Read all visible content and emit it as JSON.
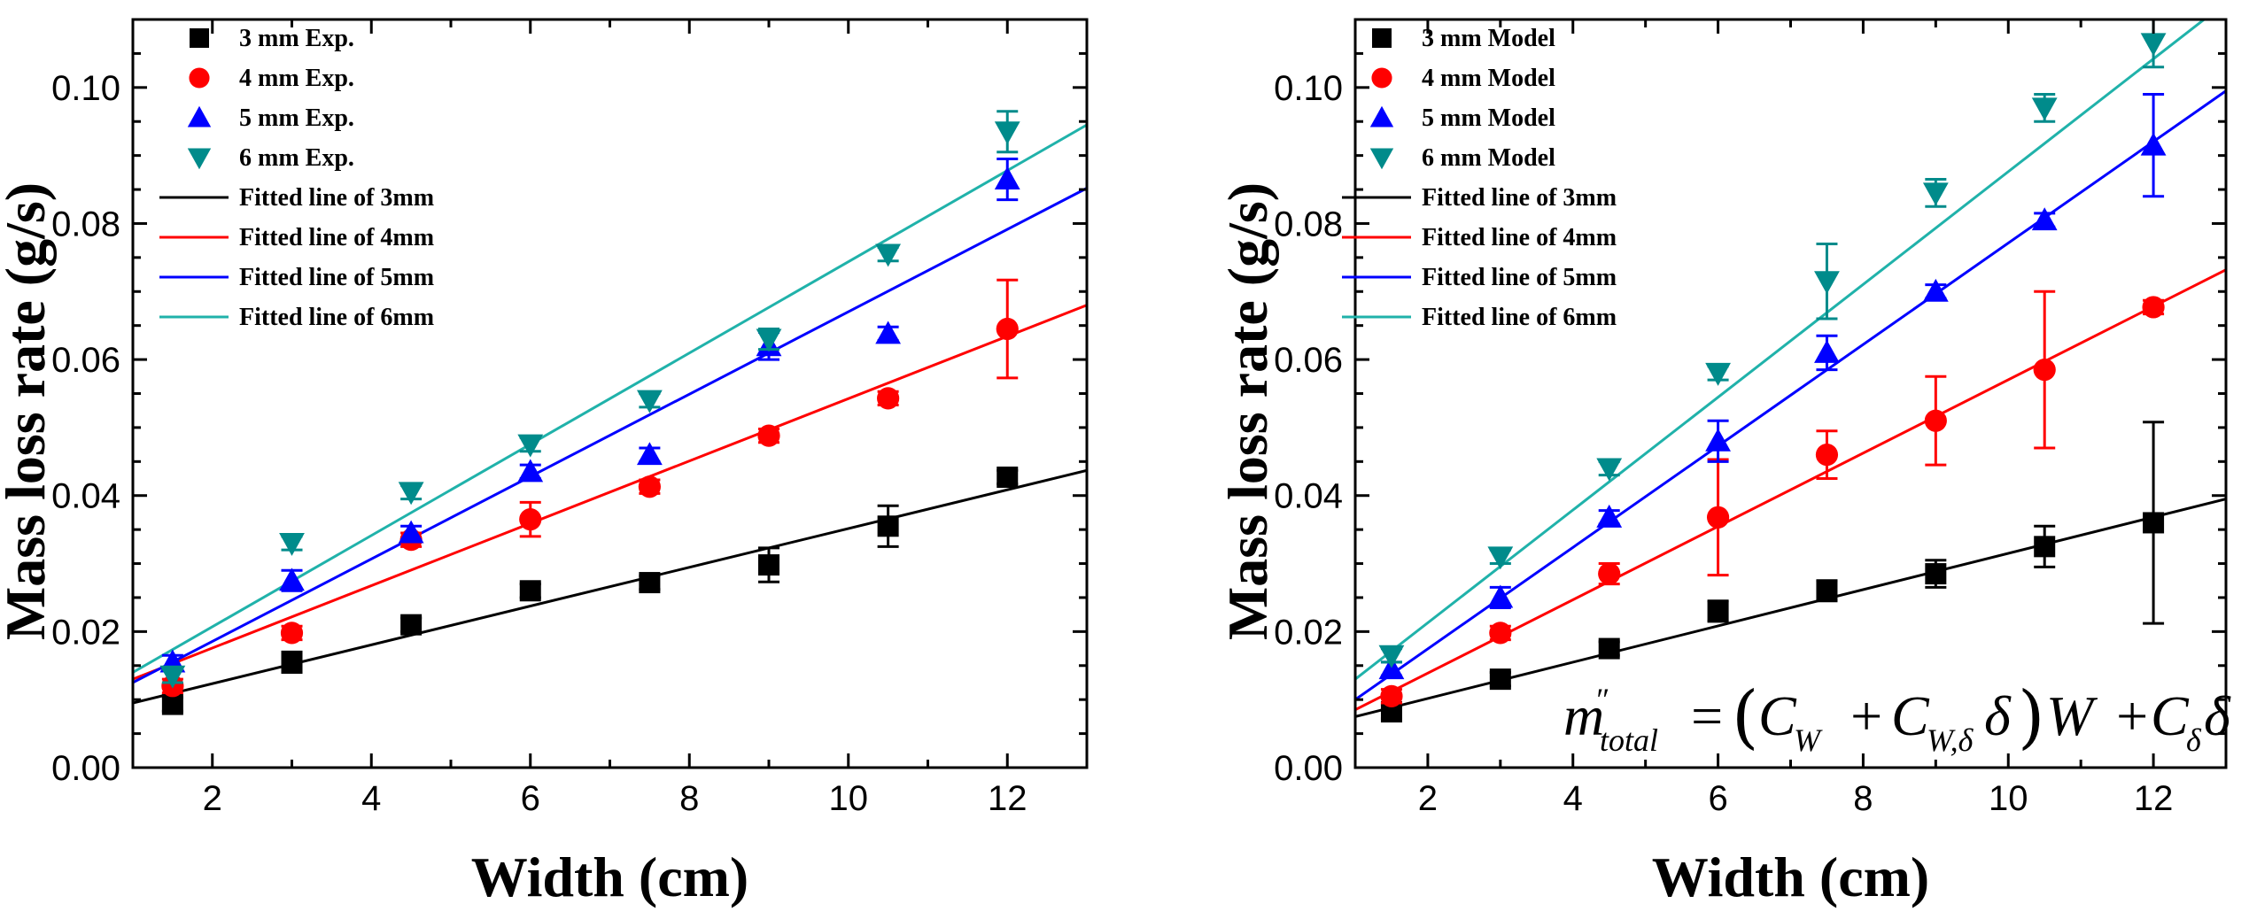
{
  "chart_data": [
    {
      "type": "scatter",
      "xlabel": "Width (cm)",
      "ylabel": "Mass loss rate (g/s)",
      "xlim": [
        1,
        13
      ],
      "ylim": [
        0,
        0.11
      ],
      "xticks": [
        2,
        4,
        6,
        8,
        10,
        12
      ],
      "yticks": [
        "0.00",
        "0.02",
        "0.04",
        "0.06",
        "0.08",
        "0.10"
      ],
      "grid": false,
      "legend": "top-left",
      "series": [
        {
          "name": "3 mm Exp.",
          "marker": "square",
          "color": "#000000",
          "x": [
            1.5,
            3,
            4.5,
            6,
            7.5,
            9,
            10.5,
            12
          ],
          "y": [
            0.0093,
            0.0155,
            0.021,
            0.026,
            0.0272,
            0.0298,
            0.0355,
            0.0427
          ],
          "err": [
            0.001,
            0.0015,
            0.001,
            0.001,
            0.001,
            0.0025,
            0.003,
            0.001
          ]
        },
        {
          "name": "4 mm Exp.",
          "marker": "circle",
          "color": "#ff0000",
          "x": [
            1.5,
            3,
            4.5,
            6,
            7.5,
            9,
            10.5,
            12
          ],
          "y": [
            0.012,
            0.0198,
            0.0335,
            0.0365,
            0.0413,
            0.0488,
            0.0543,
            0.0645
          ],
          "err": [
            0.001,
            0.001,
            0.001,
            0.0025,
            0.001,
            0.001,
            0.001,
            0.0072
          ]
        },
        {
          "name": "5 mm Exp.",
          "marker": "triangle-up",
          "color": "#0000ff",
          "x": [
            1.5,
            3,
            4.5,
            6,
            7.5,
            9,
            10.5,
            12
          ],
          "y": [
            0.0155,
            0.0275,
            0.0345,
            0.0435,
            0.046,
            0.062,
            0.0638,
            0.0865
          ],
          "err": [
            0.001,
            0.0015,
            0.001,
            0.001,
            0.001,
            0.002,
            0.001,
            0.003
          ]
        },
        {
          "name": "6 mm Exp.",
          "marker": "triangle-down",
          "color": "#008b8b",
          "x": [
            1.5,
            3,
            4.5,
            6,
            7.5,
            9,
            10.5,
            12
          ],
          "y": [
            0.0135,
            0.033,
            0.0405,
            0.0475,
            0.054,
            0.063,
            0.0755,
            0.0935
          ],
          "err": [
            0.001,
            0.001,
            0.001,
            0.001,
            0.001,
            0.0015,
            0.001,
            0.003
          ]
        }
      ],
      "fits": [
        {
          "name": "Fitted line of 3mm",
          "color": "#000000",
          "y_at_xmin": 0.0095,
          "y_at_xmax": 0.0437
        },
        {
          "name": "Fitted line of 4mm",
          "color": "#ff0000",
          "y_at_xmin": 0.013,
          "y_at_xmax": 0.068
        },
        {
          "name": "Fitted line of 5mm",
          "color": "#0000ff",
          "y_at_xmin": 0.0125,
          "y_at_xmax": 0.0852
        },
        {
          "name": "Fitted line of 6mm",
          "color": "#20b2aa",
          "y_at_xmin": 0.014,
          "y_at_xmax": 0.0945
        }
      ]
    },
    {
      "type": "scatter",
      "xlabel": "Width (cm)",
      "ylabel": "Mass loss rate (g/s)",
      "xlim": [
        1,
        13
      ],
      "ylim": [
        0,
        0.11
      ],
      "xticks": [
        2,
        4,
        6,
        8,
        10,
        12
      ],
      "yticks": [
        "0.00",
        "0.02",
        "0.04",
        "0.06",
        "0.08",
        "0.10"
      ],
      "grid": false,
      "legend": "top-left",
      "series": [
        {
          "name": "3 mm Model",
          "marker": "square",
          "color": "#000000",
          "x": [
            1.5,
            3,
            4.5,
            6,
            7.5,
            9,
            10.5,
            12
          ],
          "y": [
            0.0082,
            0.013,
            0.0175,
            0.023,
            0.026,
            0.0285,
            0.0325,
            0.036
          ],
          "err": [
            0.001,
            0.001,
            0.001,
            0.0015,
            0.0015,
            0.002,
            0.003,
            0.0148
          ]
        },
        {
          "name": "4 mm Model",
          "marker": "circle",
          "color": "#ff0000",
          "x": [
            1.5,
            3,
            4.5,
            6,
            7.5,
            9,
            10.5,
            12
          ],
          "y": [
            0.0105,
            0.0198,
            0.0285,
            0.0368,
            0.046,
            0.051,
            0.0585,
            0.0677
          ],
          "err": [
            0.001,
            0.001,
            0.0015,
            0.0085,
            0.0035,
            0.0065,
            0.0115,
            0.001
          ]
        },
        {
          "name": "5 mm Model",
          "marker": "triangle-up",
          "color": "#0000ff",
          "x": [
            1.5,
            3,
            4.5,
            6,
            7.5,
            9,
            10.5,
            12
          ],
          "y": [
            0.0145,
            0.025,
            0.0368,
            0.048,
            0.061,
            0.07,
            0.0805,
            0.0915
          ],
          "err": [
            0.001,
            0.0015,
            0.001,
            0.003,
            0.0025,
            0.001,
            0.001,
            0.0075
          ]
        },
        {
          "name": "6 mm Model",
          "marker": "triangle-down",
          "color": "#008b8b",
          "x": [
            1.5,
            3,
            4.5,
            6,
            7.5,
            9,
            10.5,
            12
          ],
          "y": [
            0.0165,
            0.031,
            0.044,
            0.058,
            0.0715,
            0.0845,
            0.097,
            0.1065
          ],
          "err": [
            0.001,
            0.001,
            0.001,
            0.001,
            0.0055,
            0.002,
            0.002,
            0.0035
          ]
        }
      ],
      "fits": [
        {
          "name": "Fitted line of 3mm",
          "color": "#000000",
          "y_at_xmin": 0.0075,
          "y_at_xmax": 0.0395
        },
        {
          "name": "Fitted line of 4mm",
          "color": "#ff0000",
          "y_at_xmin": 0.0085,
          "y_at_xmax": 0.0732
        },
        {
          "name": "Fitted line of 5mm",
          "color": "#0000ff",
          "y_at_xmin": 0.01,
          "y_at_xmax": 0.0995
        },
        {
          "name": "Fitted line of 6mm",
          "color": "#20b2aa",
          "y_at_xmin": 0.013,
          "y_at_xmax": 0.1125
        }
      ],
      "annotation": {
        "m_symbol": "m",
        "m_prime": "″",
        "m_sub": "total",
        "equals": "=",
        "cw": "C",
        "cw_sub": "W",
        "plus": "+",
        "cwd": "C",
        "cwd_sub": "W,δ",
        "delta": "δ",
        "w": "W",
        "cd": "C",
        "cd_sub": "δ"
      }
    }
  ]
}
